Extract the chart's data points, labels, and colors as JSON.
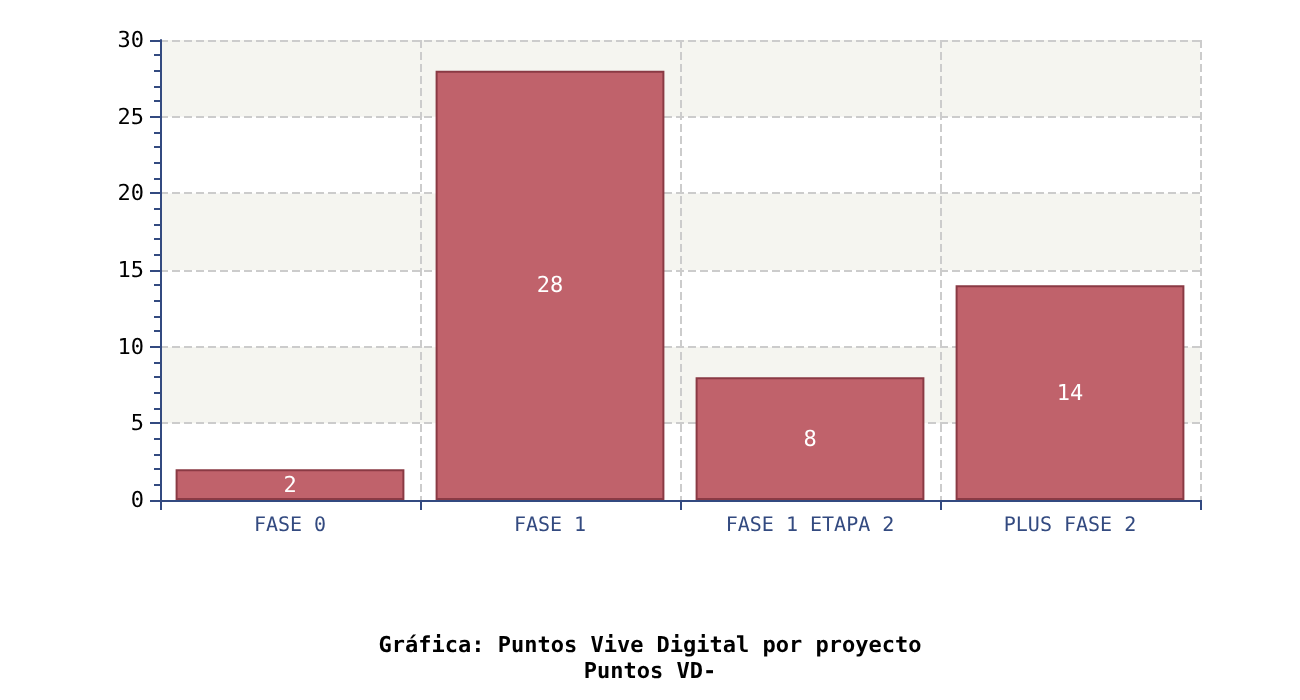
{
  "chart_data": {
    "type": "bar",
    "title": "Gráfica: Puntos Vive Digital por proyecto",
    "subtitle": "Puntos VD-",
    "categories": [
      "FASE 0",
      "FASE 1",
      "FASE 1 ETAPA 2",
      "PLUS FASE 2"
    ],
    "values": [
      2,
      28,
      8,
      14
    ],
    "color": "#c0626b",
    "ylim": [
      0,
      30
    ],
    "yticks": [
      0,
      5,
      10,
      15,
      20,
      25,
      30
    ],
    "grid": true,
    "data_labels": true
  }
}
